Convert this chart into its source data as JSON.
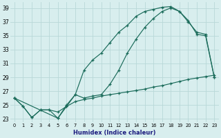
{
  "xlabel": "Humidex (Indice chaleur)",
  "bg_color": "#d8eeee",
  "grid_color": "#b8d8d8",
  "line_color": "#1a6b5a",
  "xlim": [
    -0.5,
    23.5
  ],
  "ylim": [
    22.5,
    39.8
  ],
  "yticks": [
    23,
    25,
    27,
    29,
    31,
    33,
    35,
    37,
    39
  ],
  "xticks": [
    0,
    1,
    2,
    3,
    4,
    5,
    6,
    7,
    8,
    9,
    10,
    11,
    12,
    13,
    14,
    15,
    16,
    17,
    18,
    19,
    20,
    21,
    22,
    23
  ],
  "line1_x": [
    0,
    1,
    2,
    3,
    4,
    5,
    6,
    7,
    8,
    9,
    10,
    11,
    12,
    13,
    14,
    15,
    16,
    17,
    18,
    19,
    20,
    21,
    22,
    23
  ],
  "line1_y": [
    26.0,
    24.8,
    23.2,
    24.3,
    24.3,
    24.0,
    24.8,
    25.5,
    25.8,
    26.0,
    26.3,
    26.5,
    26.7,
    26.9,
    27.1,
    27.3,
    27.6,
    27.8,
    28.1,
    28.4,
    28.7,
    28.9,
    29.1,
    29.3
  ],
  "line2_x": [
    0,
    1,
    2,
    3,
    4,
    5,
    6,
    7,
    8,
    9,
    10,
    11,
    12,
    13,
    14,
    15,
    16,
    17,
    18,
    19,
    20,
    21,
    22,
    23
  ],
  "line2_y": [
    26.0,
    24.8,
    23.2,
    24.3,
    24.3,
    23.1,
    24.8,
    26.5,
    30.0,
    31.5,
    32.5,
    34.0,
    35.5,
    36.5,
    37.8,
    38.5,
    38.8,
    39.1,
    39.2,
    38.5,
    37.2,
    35.2,
    35.0,
    29.0
  ],
  "line3_x": [
    0,
    5,
    6,
    7,
    8,
    9,
    10,
    11,
    12,
    13,
    14,
    15,
    16,
    17,
    18,
    19,
    20,
    21,
    22,
    23
  ],
  "line3_y": [
    26.0,
    23.1,
    25.0,
    26.5,
    26.0,
    26.3,
    26.5,
    28.0,
    30.0,
    32.5,
    34.5,
    36.2,
    37.5,
    38.5,
    39.0,
    38.5,
    37.0,
    35.5,
    35.2,
    29.0
  ]
}
